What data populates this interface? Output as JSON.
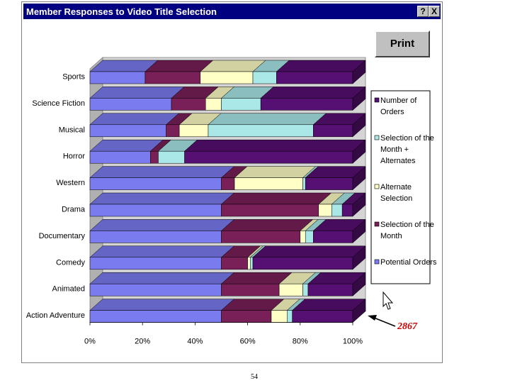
{
  "window": {
    "title": "Member Responses to Video Title Selection",
    "help_label": "?",
    "close_label": "X"
  },
  "toolbar": {
    "print_label": "Print"
  },
  "page_number": "54",
  "callout": {
    "text": "2867"
  },
  "colors": {
    "Potential Orders": "#7b7bf0",
    "Selection of the Month": "#7a2059",
    "Alternate Selection": "#ffffc6",
    "Selection of the Month + Alternates": "#aae8e8",
    "Number of Orders": "#560f72"
  },
  "chart_data": {
    "type": "bar",
    "orientation": "horizontal",
    "stacked": "percent",
    "title": "Member Responses to Video Title Selection",
    "categories": [
      "Sports",
      "Science Fiction",
      "Musical",
      "Horror",
      "Western",
      "Drama",
      "Documentary",
      "Comedy",
      "Animated",
      "Action Adventure"
    ],
    "series": [
      {
        "name": "Potential Orders",
        "values": [
          21,
          31,
          29,
          23,
          50,
          50,
          50,
          50,
          50,
          50
        ]
      },
      {
        "name": "Selection of the Month",
        "values": [
          21,
          13,
          5,
          3,
          5,
          37,
          30,
          10,
          22,
          19
        ]
      },
      {
        "name": "Alternate Selection",
        "values": [
          20,
          6,
          11,
          0,
          26,
          5,
          2,
          1,
          9,
          6
        ]
      },
      {
        "name": "Selection of the Month + Alternates",
        "values": [
          9,
          15,
          40,
          10,
          1,
          4,
          3,
          1,
          2,
          2
        ]
      },
      {
        "name": "Number of Orders",
        "values": [
          29,
          35,
          15,
          64,
          18,
          4,
          15,
          38,
          17,
          23
        ]
      }
    ],
    "legend_entries": [
      {
        "series": "Number of Orders",
        "lines": [
          "Number of",
          "Orders"
        ]
      },
      {
        "series": "Selection of the Month + Alternates",
        "lines": [
          "Selection of the",
          "Month +",
          "Alternates"
        ]
      },
      {
        "series": "Alternate Selection",
        "lines": [
          "Alternate",
          "Selection"
        ]
      },
      {
        "series": "Selection of the Month",
        "lines": [
          "Selection of the",
          "Month"
        ]
      },
      {
        "series": "Potential Orders",
        "lines": [
          "Potential Orders"
        ]
      }
    ],
    "x_ticks": [
      "0%",
      "20%",
      "40%",
      "60%",
      "80%",
      "100%"
    ],
    "xlim": [
      0,
      100
    ],
    "xlabel": "",
    "ylabel": "",
    "legend": "right",
    "grid": false
  }
}
